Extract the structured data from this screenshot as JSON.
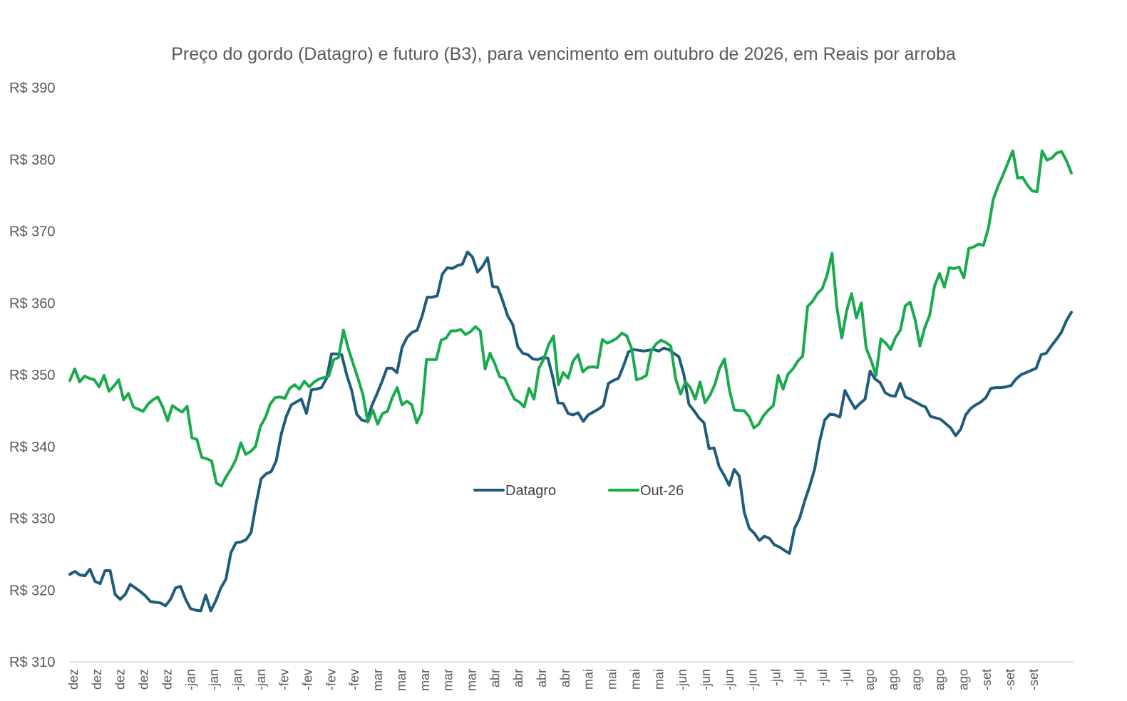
{
  "chart_data": {
    "type": "line",
    "title": "Preço do gordo (Datagro) e futuro (B3), para vencimento em outubro de 2026, em Reais por arroba",
    "xlabel": "",
    "ylabel": "",
    "ylim": [
      310,
      390
    ],
    "y_ticks": [
      310,
      320,
      330,
      340,
      350,
      360,
      370,
      380,
      390
    ],
    "y_tick_labels": [
      "R$ 310",
      "R$ 320",
      "R$ 330",
      "R$ 340",
      "R$ 350",
      "R$ 360",
      "R$ 370",
      "R$ 380",
      "R$ 390"
    ],
    "x_tick_labels": [
      "dez",
      "dez",
      "dez",
      "dez",
      "dez",
      "-jan",
      "-jan",
      "-jan",
      "-jan",
      "-fev",
      "-fev",
      "-fev",
      "-fev",
      "mar",
      "mar",
      "mar",
      "mar",
      "mar",
      "abr",
      "abr",
      "abr",
      "abr",
      "mai",
      "mai",
      "mai",
      "mai",
      "-jun",
      "-jun",
      "-jun",
      "-jun",
      "-jul",
      "-jul",
      "-jul",
      "-jul",
      "ago",
      "ago",
      "ago",
      "ago",
      "ago",
      "-set",
      "-set",
      "-set"
    ],
    "grid": false,
    "legend_position": "center",
    "series": [
      {
        "name": "Datagro",
        "color": "#1f5c7a",
        "values": [
          322.2,
          322.6,
          322.1,
          322.0,
          322.9,
          321.2,
          320.9,
          322.7,
          322.7,
          319.4,
          318.7,
          319.4,
          320.8,
          320.3,
          319.8,
          319.2,
          318.4,
          318.3,
          318.2,
          317.8,
          318.7,
          320.3,
          320.5,
          318.7,
          317.4,
          317.2,
          317.1,
          319.3,
          317.1,
          318.5,
          320.3,
          321.5,
          325.2,
          326.6,
          326.7,
          327.0,
          328.0,
          332.0,
          335.5,
          336.2,
          336.5,
          338.0,
          341.7,
          344.2,
          345.8,
          346.2,
          346.6,
          344.6,
          347.9,
          348.0,
          348.2,
          349.5,
          352.9,
          352.9,
          352.8,
          350.0,
          347.8,
          344.5,
          343.7,
          343.5,
          345.7,
          347.3,
          349.0,
          350.9,
          350.9,
          350.3,
          353.8,
          355.2,
          355.9,
          356.2,
          358.2,
          360.8,
          360.8,
          361.0,
          364.0,
          364.9,
          364.8,
          365.2,
          365.4,
          367.1,
          366.4,
          364.3,
          365.1,
          366.3,
          362.3,
          362.2,
          360.3,
          358.2,
          357.0,
          353.9,
          353.0,
          352.8,
          352.2,
          352.1,
          352.4,
          352.3,
          349.5,
          346.1,
          346.0,
          344.6,
          344.4,
          344.7,
          343.5,
          344.4,
          344.8,
          345.2,
          345.7,
          348.8,
          349.2,
          349.5,
          351.2,
          353.2,
          353.5,
          353.4,
          353.3,
          353.4,
          353.5,
          353.3,
          353.7,
          353.5,
          353.0,
          352.5,
          350.0,
          345.9,
          345.0,
          344.0,
          343.3,
          339.7,
          339.8,
          337.2,
          336.0,
          334.6,
          336.8,
          335.9,
          330.8,
          328.6,
          327.9,
          326.9,
          327.5,
          327.2,
          326.3,
          326.0,
          325.5,
          325.1,
          328.6,
          330.0,
          332.4,
          334.5,
          336.9,
          340.8,
          343.7,
          344.5,
          344.4,
          344.1,
          347.8,
          346.5,
          345.3,
          346.0,
          346.6,
          350.5,
          349.4,
          348.9,
          347.5,
          347.1,
          347.0,
          348.8,
          346.9,
          346.6,
          346.2,
          345.8,
          345.5,
          344.2,
          344.0,
          343.8,
          343.2,
          342.6,
          341.5,
          342.4,
          344.4,
          345.3,
          345.8,
          346.2,
          346.8,
          348.1,
          348.2,
          348.2,
          348.3,
          348.5,
          349.4,
          350.0,
          350.3,
          350.6,
          350.9,
          352.8,
          353.0,
          354.0,
          354.9,
          355.9,
          357.5,
          358.7
        ]
      },
      {
        "name": "Out-26",
        "color": "#1aaa4e",
        "values": [
          349.2,
          350.8,
          349.0,
          349.8,
          349.5,
          349.3,
          348.3,
          349.9,
          347.7,
          348.4,
          349.3,
          346.5,
          347.4,
          345.5,
          345.2,
          344.9,
          345.9,
          346.5,
          346.9,
          345.5,
          343.6,
          345.7,
          345.2,
          344.8,
          345.6,
          341.2,
          341.0,
          338.5,
          338.3,
          338.0,
          334.9,
          334.5,
          335.8,
          336.9,
          338.2,
          340.5,
          338.9,
          339.3,
          340.0,
          342.8,
          344.0,
          345.9,
          346.8,
          346.9,
          346.7,
          348.1,
          348.6,
          348.0,
          349.1,
          348.3,
          349.0,
          349.4,
          349.6,
          349.8,
          352.1,
          352.4,
          356.2,
          353.6,
          351.5,
          349.4,
          347.2,
          343.4,
          345.1,
          343.1,
          344.6,
          344.9,
          346.8,
          348.2,
          345.8,
          346.3,
          345.8,
          343.3,
          344.7,
          352.1,
          352.1,
          352.1,
          354.8,
          355.1,
          356.1,
          356.1,
          356.3,
          355.6,
          356.0,
          356.7,
          356.1,
          350.8,
          353.0,
          351.5,
          349.7,
          349.5,
          348.0,
          346.6,
          346.2,
          345.5,
          348.1,
          346.6,
          350.9,
          352.2,
          354.2,
          355.4,
          348.6,
          350.3,
          349.5,
          351.9,
          352.8,
          350.4,
          351.0,
          351.1,
          351.0,
          354.9,
          354.4,
          354.7,
          355.1,
          355.8,
          355.4,
          353.6,
          349.3,
          349.5,
          349.9,
          353.3,
          354.3,
          354.8,
          354.5,
          354.0,
          349.4,
          347.3,
          349.0,
          348.2,
          346.6,
          349.0,
          346.1,
          347.1,
          348.6,
          350.9,
          352.2,
          347.9,
          345.1,
          345.0,
          345.0,
          344.2,
          342.6,
          343.1,
          344.3,
          345.1,
          345.7,
          349.9,
          348.0,
          350.1,
          350.8,
          351.9,
          352.6,
          359.5,
          360.2,
          361.3,
          362.0,
          363.9,
          366.9,
          359.4,
          355.1,
          358.9,
          361.3,
          357.9,
          360.0,
          353.7,
          352.0,
          349.9,
          355.0,
          354.4,
          353.5,
          355.2,
          356.2,
          359.6,
          360.1,
          357.7,
          354.0,
          356.6,
          358.3,
          362.4,
          364.1,
          362.2,
          364.9,
          364.8,
          365.0,
          363.5,
          367.6,
          367.8,
          368.2,
          368.0,
          370.4,
          374.4,
          376.3,
          377.8,
          379.5,
          381.2,
          377.4,
          377.5,
          376.4,
          375.6,
          375.5,
          381.2,
          379.9,
          380.2,
          380.9,
          381.1,
          379.8,
          378.1
        ]
      }
    ]
  }
}
